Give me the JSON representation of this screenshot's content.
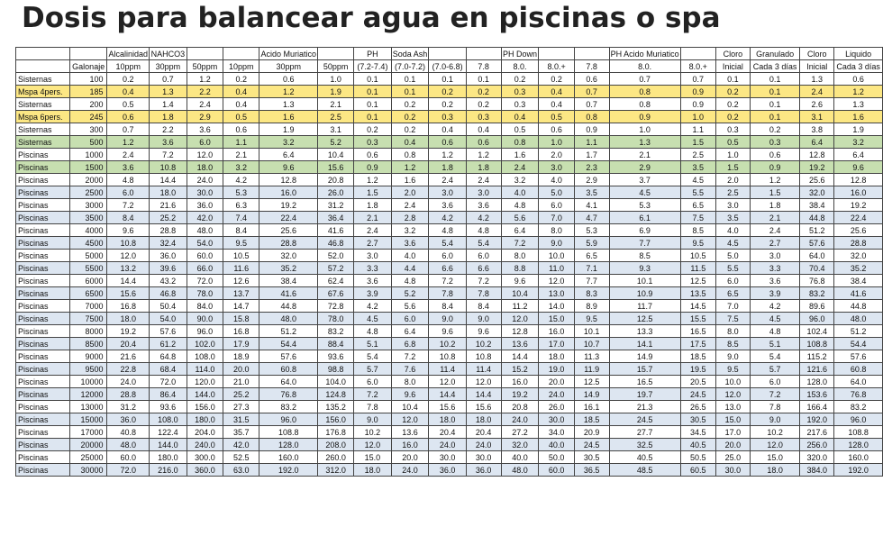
{
  "title": "Dosis para balancear agua en piscinas o spa",
  "header_row1": [
    "",
    "",
    "Alcalinidad",
    "NAHCO3",
    "",
    "",
    "Acido Muriatico",
    "",
    "PH",
    "Soda Ash",
    "",
    "",
    "PH Down",
    "",
    "",
    "PH Acido Muriatico",
    "",
    "Cloro",
    "Granulado",
    "Cloro",
    "Liquido"
  ],
  "header_row2": [
    "",
    "Galonaje",
    "10ppm",
    "30ppm",
    "50ppm",
    "10ppm",
    "30ppm",
    "50ppm",
    "(7.2-7.4)",
    "(7.0-7.2)",
    "(7.0-6.8)",
    "7.8",
    "8.0.",
    "8.0.+",
    "7.8",
    "8.0.",
    "8.0.+",
    "Inicial",
    "Cada 3 días",
    "Inicial",
    "Cada 3 días"
  ],
  "rows": [
    {
      "style": "white",
      "cells": [
        "Sisternas",
        "100",
        "0.2",
        "0.7",
        "1.2",
        "0.2",
        "0.6",
        "1.0",
        "0.1",
        "0.1",
        "0.1",
        "0.1",
        "0.2",
        "0.2",
        "0.6",
        "0.7",
        "0.7",
        "0.1",
        "0.1",
        "1.3",
        "0.6"
      ]
    },
    {
      "style": "yellow",
      "cells": [
        "Mspa 4pers.",
        "185",
        "0.4",
        "1.3",
        "2.2",
        "0.4",
        "1.2",
        "1.9",
        "0.1",
        "0.1",
        "0.2",
        "0.2",
        "0.3",
        "0.4",
        "0.7",
        "0.8",
        "0.9",
        "0.2",
        "0.1",
        "2.4",
        "1.2"
      ]
    },
    {
      "style": "white",
      "cells": [
        "Sisternas",
        "200",
        "0.5",
        "1.4",
        "2.4",
        "0.4",
        "1.3",
        "2.1",
        "0.1",
        "0.2",
        "0.2",
        "0.2",
        "0.3",
        "0.4",
        "0.7",
        "0.8",
        "0.9",
        "0.2",
        "0.1",
        "2.6",
        "1.3"
      ]
    },
    {
      "style": "yellow",
      "cells": [
        "Mspa 6pers.",
        "245",
        "0.6",
        "1.8",
        "2.9",
        "0.5",
        "1.6",
        "2.5",
        "0.1",
        "0.2",
        "0.3",
        "0.3",
        "0.4",
        "0.5",
        "0.8",
        "0.9",
        "1.0",
        "0.2",
        "0.1",
        "3.1",
        "1.6"
      ]
    },
    {
      "style": "white",
      "cells": [
        "Sisternas",
        "300",
        "0.7",
        "2.2",
        "3.6",
        "0.6",
        "1.9",
        "3.1",
        "0.2",
        "0.2",
        "0.4",
        "0.4",
        "0.5",
        "0.6",
        "0.9",
        "1.0",
        "1.1",
        "0.3",
        "0.2",
        "3.8",
        "1.9"
      ]
    },
    {
      "style": "green",
      "cells": [
        "Sisternas",
        "500",
        "1.2",
        "3.6",
        "6.0",
        "1.1",
        "3.2",
        "5.2",
        "0.3",
        "0.4",
        "0.6",
        "0.6",
        "0.8",
        "1.0",
        "1.1",
        "1.3",
        "1.5",
        "0.5",
        "0.3",
        "6.4",
        "3.2"
      ]
    },
    {
      "style": "white",
      "cells": [
        "Piscinas",
        "1000",
        "2.4",
        "7.2",
        "12.0",
        "2.1",
        "6.4",
        "10.4",
        "0.6",
        "0.8",
        "1.2",
        "1.2",
        "1.6",
        "2.0",
        "1.7",
        "2.1",
        "2.5",
        "1.0",
        "0.6",
        "12.8",
        "6.4"
      ]
    },
    {
      "style": "green",
      "cells": [
        "Piscinas",
        "1500",
        "3.6",
        "10.8",
        "18.0",
        "3.2",
        "9.6",
        "15.6",
        "0.9",
        "1.2",
        "1.8",
        "1.8",
        "2.4",
        "3.0",
        "2.3",
        "2.9",
        "3.5",
        "1.5",
        "0.9",
        "19.2",
        "9.6"
      ]
    },
    {
      "style": "white",
      "cells": [
        "Piscinas",
        "2000",
        "4.8",
        "14.4",
        "24.0",
        "4.2",
        "12.8",
        "20.8",
        "1.2",
        "1.6",
        "2.4",
        "2.4",
        "3.2",
        "4.0",
        "2.9",
        "3.7",
        "4.5",
        "2.0",
        "1.2",
        "25.6",
        "12.8"
      ]
    },
    {
      "style": "blue",
      "cells": [
        "Piscinas",
        "2500",
        "6.0",
        "18.0",
        "30.0",
        "5.3",
        "16.0",
        "26.0",
        "1.5",
        "2.0",
        "3.0",
        "3.0",
        "4.0",
        "5.0",
        "3.5",
        "4.5",
        "5.5",
        "2.5",
        "1.5",
        "32.0",
        "16.0"
      ]
    },
    {
      "style": "white",
      "cells": [
        "Piscinas",
        "3000",
        "7.2",
        "21.6",
        "36.0",
        "6.3",
        "19.2",
        "31.2",
        "1.8",
        "2.4",
        "3.6",
        "3.6",
        "4.8",
        "6.0",
        "4.1",
        "5.3",
        "6.5",
        "3.0",
        "1.8",
        "38.4",
        "19.2"
      ]
    },
    {
      "style": "blue",
      "cells": [
        "Piscinas",
        "3500",
        "8.4",
        "25.2",
        "42.0",
        "7.4",
        "22.4",
        "36.4",
        "2.1",
        "2.8",
        "4.2",
        "4.2",
        "5.6",
        "7.0",
        "4.7",
        "6.1",
        "7.5",
        "3.5",
        "2.1",
        "44.8",
        "22.4"
      ]
    },
    {
      "style": "white",
      "cells": [
        "Piscinas",
        "4000",
        "9.6",
        "28.8",
        "48.0",
        "8.4",
        "25.6",
        "41.6",
        "2.4",
        "3.2",
        "4.8",
        "4.8",
        "6.4",
        "8.0",
        "5.3",
        "6.9",
        "8.5",
        "4.0",
        "2.4",
        "51.2",
        "25.6"
      ]
    },
    {
      "style": "blue",
      "cells": [
        "Piscinas",
        "4500",
        "10.8",
        "32.4",
        "54.0",
        "9.5",
        "28.8",
        "46.8",
        "2.7",
        "3.6",
        "5.4",
        "5.4",
        "7.2",
        "9.0",
        "5.9",
        "7.7",
        "9.5",
        "4.5",
        "2.7",
        "57.6",
        "28.8"
      ]
    },
    {
      "style": "white",
      "cells": [
        "Piscinas",
        "5000",
        "12.0",
        "36.0",
        "60.0",
        "10.5",
        "32.0",
        "52.0",
        "3.0",
        "4.0",
        "6.0",
        "6.0",
        "8.0",
        "10.0",
        "6.5",
        "8.5",
        "10.5",
        "5.0",
        "3.0",
        "64.0",
        "32.0"
      ]
    },
    {
      "style": "blue",
      "cells": [
        "Piscinas",
        "5500",
        "13.2",
        "39.6",
        "66.0",
        "11.6",
        "35.2",
        "57.2",
        "3.3",
        "4.4",
        "6.6",
        "6.6",
        "8.8",
        "11.0",
        "7.1",
        "9.3",
        "11.5",
        "5.5",
        "3.3",
        "70.4",
        "35.2"
      ]
    },
    {
      "style": "white",
      "cells": [
        "Piscinas",
        "6000",
        "14.4",
        "43.2",
        "72.0",
        "12.6",
        "38.4",
        "62.4",
        "3.6",
        "4.8",
        "7.2",
        "7.2",
        "9.6",
        "12.0",
        "7.7",
        "10.1",
        "12.5",
        "6.0",
        "3.6",
        "76.8",
        "38.4"
      ]
    },
    {
      "style": "blue",
      "cells": [
        "Piscinas",
        "6500",
        "15.6",
        "46.8",
        "78.0",
        "13.7",
        "41.6",
        "67.6",
        "3.9",
        "5.2",
        "7.8",
        "7.8",
        "10.4",
        "13.0",
        "8.3",
        "10.9",
        "13.5",
        "6.5",
        "3.9",
        "83.2",
        "41.6"
      ]
    },
    {
      "style": "white",
      "cells": [
        "Piscinas",
        "7000",
        "16.8",
        "50.4",
        "84.0",
        "14.7",
        "44.8",
        "72.8",
        "4.2",
        "5.6",
        "8.4",
        "8.4",
        "11.2",
        "14.0",
        "8.9",
        "11.7",
        "14.5",
        "7.0",
        "4.2",
        "89.6",
        "44.8"
      ]
    },
    {
      "style": "blue",
      "cells": [
        "Piscinas",
        "7500",
        "18.0",
        "54.0",
        "90.0",
        "15.8",
        "48.0",
        "78.0",
        "4.5",
        "6.0",
        "9.0",
        "9.0",
        "12.0",
        "15.0",
        "9.5",
        "12.5",
        "15.5",
        "7.5",
        "4.5",
        "96.0",
        "48.0"
      ]
    },
    {
      "style": "white",
      "cells": [
        "Piscinas",
        "8000",
        "19.2",
        "57.6",
        "96.0",
        "16.8",
        "51.2",
        "83.2",
        "4.8",
        "6.4",
        "9.6",
        "9.6",
        "12.8",
        "16.0",
        "10.1",
        "13.3",
        "16.5",
        "8.0",
        "4.8",
        "102.4",
        "51.2"
      ]
    },
    {
      "style": "blue",
      "cells": [
        "Piscinas",
        "8500",
        "20.4",
        "61.2",
        "102.0",
        "17.9",
        "54.4",
        "88.4",
        "5.1",
        "6.8",
        "10.2",
        "10.2",
        "13.6",
        "17.0",
        "10.7",
        "14.1",
        "17.5",
        "8.5",
        "5.1",
        "108.8",
        "54.4"
      ]
    },
    {
      "style": "white",
      "cells": [
        "Piscinas",
        "9000",
        "21.6",
        "64.8",
        "108.0",
        "18.9",
        "57.6",
        "93.6",
        "5.4",
        "7.2",
        "10.8",
        "10.8",
        "14.4",
        "18.0",
        "11.3",
        "14.9",
        "18.5",
        "9.0",
        "5.4",
        "115.2",
        "57.6"
      ]
    },
    {
      "style": "blue",
      "cells": [
        "Piscinas",
        "9500",
        "22.8",
        "68.4",
        "114.0",
        "20.0",
        "60.8",
        "98.8",
        "5.7",
        "7.6",
        "11.4",
        "11.4",
        "15.2",
        "19.0",
        "11.9",
        "15.7",
        "19.5",
        "9.5",
        "5.7",
        "121.6",
        "60.8"
      ]
    },
    {
      "style": "white",
      "cells": [
        "Piscinas",
        "10000",
        "24.0",
        "72.0",
        "120.0",
        "21.0",
        "64.0",
        "104.0",
        "6.0",
        "8.0",
        "12.0",
        "12.0",
        "16.0",
        "20.0",
        "12.5",
        "16.5",
        "20.5",
        "10.0",
        "6.0",
        "128.0",
        "64.0"
      ]
    },
    {
      "style": "blue",
      "cells": [
        "Piscinas",
        "12000",
        "28.8",
        "86.4",
        "144.0",
        "25.2",
        "76.8",
        "124.8",
        "7.2",
        "9.6",
        "14.4",
        "14.4",
        "19.2",
        "24.0",
        "14.9",
        "19.7",
        "24.5",
        "12.0",
        "7.2",
        "153.6",
        "76.8"
      ]
    },
    {
      "style": "white",
      "cells": [
        "Piscinas",
        "13000",
        "31.2",
        "93.6",
        "156.0",
        "27.3",
        "83.2",
        "135.2",
        "7.8",
        "10.4",
        "15.6",
        "15.6",
        "20.8",
        "26.0",
        "16.1",
        "21.3",
        "26.5",
        "13.0",
        "7.8",
        "166.4",
        "83.2"
      ]
    },
    {
      "style": "blue",
      "cells": [
        "Piscinas",
        "15000",
        "36.0",
        "108.0",
        "180.0",
        "31.5",
        "96.0",
        "156.0",
        "9.0",
        "12.0",
        "18.0",
        "18.0",
        "24.0",
        "30.0",
        "18.5",
        "24.5",
        "30.5",
        "15.0",
        "9.0",
        "192.0",
        "96.0"
      ]
    },
    {
      "style": "white",
      "cells": [
        "Piscinas",
        "17000",
        "40.8",
        "122.4",
        "204.0",
        "35.7",
        "108.8",
        "176.8",
        "10.2",
        "13.6",
        "20.4",
        "20.4",
        "27.2",
        "34.0",
        "20.9",
        "27.7",
        "34.5",
        "17.0",
        "10.2",
        "217.6",
        "108.8"
      ]
    },
    {
      "style": "blue",
      "cells": [
        "Piscinas",
        "20000",
        "48.0",
        "144.0",
        "240.0",
        "42.0",
        "128.0",
        "208.0",
        "12.0",
        "16.0",
        "24.0",
        "24.0",
        "32.0",
        "40.0",
        "24.5",
        "32.5",
        "40.5",
        "20.0",
        "12.0",
        "256.0",
        "128.0"
      ]
    },
    {
      "style": "white",
      "cells": [
        "Piscinas",
        "25000",
        "60.0",
        "180.0",
        "300.0",
        "52.5",
        "160.0",
        "260.0",
        "15.0",
        "20.0",
        "30.0",
        "30.0",
        "40.0",
        "50.0",
        "30.5",
        "40.5",
        "50.5",
        "25.0",
        "15.0",
        "320.0",
        "160.0"
      ]
    },
    {
      "style": "blue",
      "cells": [
        "Piscinas",
        "30000",
        "72.0",
        "216.0",
        "360.0",
        "63.0",
        "192.0",
        "312.0",
        "18.0",
        "24.0",
        "36.0",
        "36.0",
        "48.0",
        "60.0",
        "36.5",
        "48.5",
        "60.5",
        "30.0",
        "18.0",
        "384.0",
        "192.0"
      ]
    }
  ]
}
